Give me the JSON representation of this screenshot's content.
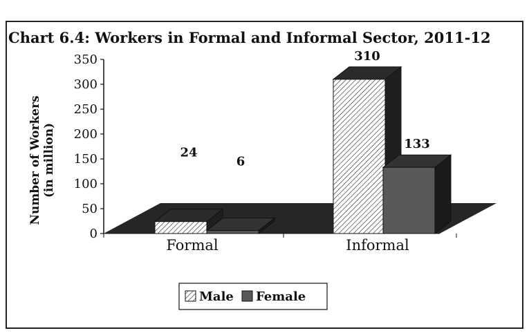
{
  "chart_data": {
    "type": "bar",
    "title": "Chart 6.4: Workers in Formal and Informal Sector, 2011-12",
    "ylabel": [
      "Number of Workers",
      "(in million)"
    ],
    "xlabel": "",
    "ylim": [
      0,
      350
    ],
    "yticks": [
      "0",
      "50",
      "100",
      "150",
      "200",
      "250",
      "300",
      "350"
    ],
    "categories": [
      "Formal",
      "Informal"
    ],
    "series": [
      {
        "name": "Male",
        "values": [
          24,
          310
        ],
        "labels": [
          "24",
          "310"
        ]
      },
      {
        "name": "Female",
        "values": [
          6,
          133
        ],
        "labels": [
          "6",
          "133"
        ]
      }
    ],
    "legend_position": "bottom-center",
    "colors": {
      "male_fill": "#ffffff",
      "male_hatch": "#222222",
      "female": "#595959",
      "floor": "#262626",
      "female_side": "#1a1a1a"
    }
  }
}
